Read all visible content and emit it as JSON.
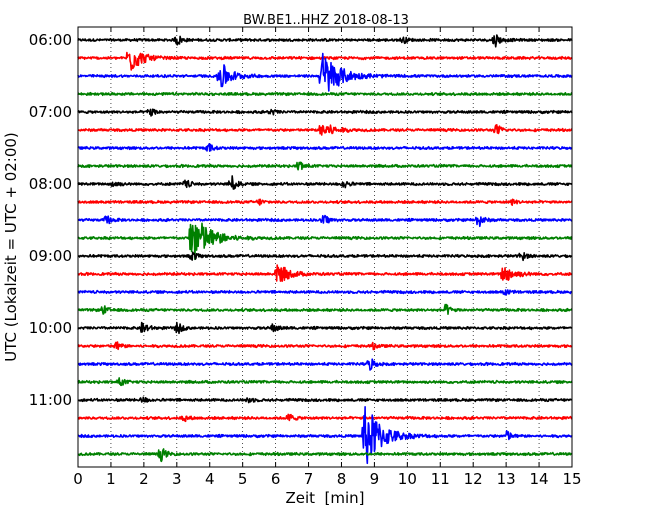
{
  "chart_data": {
    "type": "line",
    "title": "BW.BE1..HHZ 2018-08-13",
    "xlabel": "Zeit  [min]",
    "ylabel": "UTC (Lokalzeit = UTC + 02:00)",
    "xlim": [
      0,
      15
    ],
    "x_ticks": [
      "0",
      "1",
      "2",
      "3",
      "4",
      "5",
      "6",
      "7",
      "8",
      "9",
      "10",
      "11",
      "12",
      "13",
      "14",
      "15"
    ],
    "grid": "vertical dotted",
    "line_colors": [
      "#000000",
      "#ff0000",
      "#0000ff",
      "#008000"
    ],
    "trace_interval_min": 15,
    "y_ticks": [
      {
        "label": "06:00",
        "trace": 0
      },
      {
        "label": "07:00",
        "trace": 4
      },
      {
        "label": "08:00",
        "trace": 8
      },
      {
        "label": "09:00",
        "trace": 12
      },
      {
        "label": "10:00",
        "trace": 16
      },
      {
        "label": "11:00",
        "trace": 20
      }
    ],
    "traces": [
      {
        "start": "06:00",
        "color": "#000000",
        "events": [
          {
            "t": 3.05,
            "amp": 0.4
          },
          {
            "t": 9.9,
            "amp": 0.2
          },
          {
            "t": 12.7,
            "amp": 0.5
          }
        ]
      },
      {
        "start": "06:15",
        "color": "#ff0000",
        "events": [
          {
            "t": 1.6,
            "amp": 1.2
          }
        ]
      },
      {
        "start": "06:30",
        "color": "#0000ff",
        "events": [
          {
            "t": 4.35,
            "amp": 1.1
          },
          {
            "t": 7.45,
            "amp": 2.0
          }
        ]
      },
      {
        "start": "06:45",
        "color": "#008000",
        "events": []
      },
      {
        "start": "07:00",
        "color": "#000000",
        "events": [
          {
            "t": 2.2,
            "amp": 0.4
          },
          {
            "t": 5.9,
            "amp": 0.2
          }
        ]
      },
      {
        "start": "07:15",
        "color": "#ff0000",
        "events": [
          {
            "t": 7.45,
            "amp": 0.7
          },
          {
            "t": 12.75,
            "amp": 0.4
          }
        ]
      },
      {
        "start": "07:30",
        "color": "#0000ff",
        "events": [
          {
            "t": 4.0,
            "amp": 0.3
          }
        ]
      },
      {
        "start": "07:45",
        "color": "#008000",
        "events": [
          {
            "t": 6.75,
            "amp": 0.4
          }
        ]
      },
      {
        "start": "08:00",
        "color": "#000000",
        "events": [
          {
            "t": 1.1,
            "amp": 0.3
          },
          {
            "t": 3.3,
            "amp": 0.3
          },
          {
            "t": 4.7,
            "amp": 0.6
          },
          {
            "t": 8.1,
            "amp": 0.3
          }
        ]
      },
      {
        "start": "08:15",
        "color": "#ff0000",
        "events": [
          {
            "t": 5.55,
            "amp": 0.2
          },
          {
            "t": 13.2,
            "amp": 0.2
          }
        ]
      },
      {
        "start": "08:30",
        "color": "#0000ff",
        "events": [
          {
            "t": 0.9,
            "amp": 0.3
          },
          {
            "t": 7.5,
            "amp": 0.4
          },
          {
            "t": 12.2,
            "amp": 0.5
          }
        ]
      },
      {
        "start": "08:45",
        "color": "#008000",
        "events": [
          {
            "t": 3.5,
            "amp": 2.2
          }
        ]
      },
      {
        "start": "09:00",
        "color": "#000000",
        "events": [
          {
            "t": 3.5,
            "amp": 0.3
          },
          {
            "t": 13.5,
            "amp": 0.3
          }
        ]
      },
      {
        "start": "09:15",
        "color": "#ff0000",
        "events": [
          {
            "t": 6.1,
            "amp": 0.8
          },
          {
            "t": 12.95,
            "amp": 0.7
          }
        ]
      },
      {
        "start": "09:30",
        "color": "#0000ff",
        "events": [
          {
            "t": 13.0,
            "amp": 0.2
          }
        ]
      },
      {
        "start": "09:45",
        "color": "#008000",
        "events": [
          {
            "t": 0.8,
            "amp": 0.3
          },
          {
            "t": 11.2,
            "amp": 0.4
          }
        ]
      },
      {
        "start": "10:00",
        "color": "#000000",
        "events": [
          {
            "t": 2.0,
            "amp": 0.5
          },
          {
            "t": 3.05,
            "amp": 0.4
          },
          {
            "t": 5.95,
            "amp": 0.3
          }
        ]
      },
      {
        "start": "10:15",
        "color": "#ff0000",
        "events": [
          {
            "t": 1.2,
            "amp": 0.3
          },
          {
            "t": 9.0,
            "amp": 0.2
          }
        ]
      },
      {
        "start": "10:30",
        "color": "#0000ff",
        "events": [
          {
            "t": 8.9,
            "amp": 0.5
          }
        ]
      },
      {
        "start": "10:45",
        "color": "#008000",
        "events": [
          {
            "t": 1.3,
            "amp": 0.3
          }
        ]
      },
      {
        "start": "11:00",
        "color": "#000000",
        "events": [
          {
            "t": 2.0,
            "amp": 0.2
          },
          {
            "t": 5.2,
            "amp": 0.2
          }
        ]
      },
      {
        "start": "11:15",
        "color": "#ff0000",
        "events": [
          {
            "t": 3.25,
            "amp": 0.2
          },
          {
            "t": 6.45,
            "amp": 0.3
          }
        ]
      },
      {
        "start": "11:30",
        "color": "#0000ff",
        "events": [
          {
            "t": 8.75,
            "amp": 2.6
          },
          {
            "t": 13.05,
            "amp": 0.4
          }
        ]
      },
      {
        "start": "11:45",
        "color": "#008000",
        "events": [
          {
            "t": 2.55,
            "amp": 0.5
          }
        ]
      }
    ]
  }
}
